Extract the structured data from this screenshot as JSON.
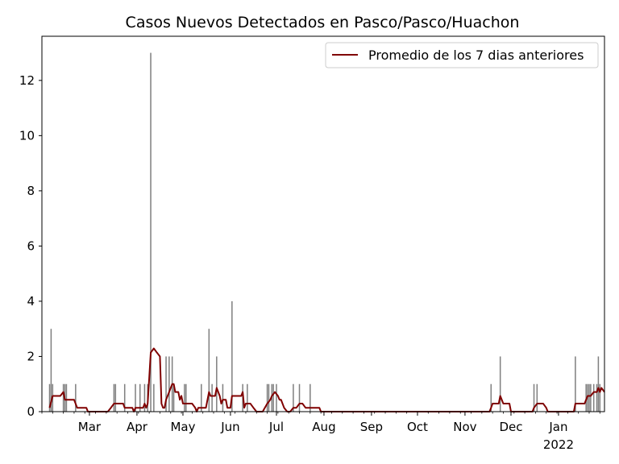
{
  "chart_data": {
    "type": "bar",
    "title": "Casos Nuevos Detectados en Pasco/Pasco/Huachon",
    "xlabel": "",
    "ylabel": "",
    "ylim": [
      0,
      13.6
    ],
    "xlim": [
      "2021-01-29",
      "2022-01-31"
    ],
    "y_ticks": [
      0,
      2,
      4,
      6,
      8,
      10,
      12
    ],
    "x_ticks": [
      {
        "date": "2021-03-01",
        "label": "Mar"
      },
      {
        "date": "2021-04-01",
        "label": "Apr"
      },
      {
        "date": "2021-05-01",
        "label": "May"
      },
      {
        "date": "2021-06-01",
        "label": "Jun"
      },
      {
        "date": "2021-07-01",
        "label": "Jul"
      },
      {
        "date": "2021-08-01",
        "label": "Aug"
      },
      {
        "date": "2021-09-01",
        "label": "Sep"
      },
      {
        "date": "2021-10-01",
        "label": "Oct"
      },
      {
        "date": "2021-11-01",
        "label": "Nov"
      },
      {
        "date": "2021-12-01",
        "label": "Dec"
      },
      {
        "date": "2022-01-01",
        "label": "Jan",
        "sublabel": "2022"
      }
    ],
    "legend": {
      "position": "top-right",
      "entries": [
        "Promedio de los 7 dias anteriores"
      ]
    },
    "grid": false,
    "series": [
      {
        "kind": "bar",
        "color": "#808080",
        "points": [
          {
            "x": "2021-02-03",
            "y": 1
          },
          {
            "x": "2021-02-04",
            "y": 3
          },
          {
            "x": "2021-02-05",
            "y": 1
          },
          {
            "x": "2021-02-12",
            "y": 1
          },
          {
            "x": "2021-02-13",
            "y": 1
          },
          {
            "x": "2021-02-14",
            "y": 1
          },
          {
            "x": "2021-02-20",
            "y": 1
          },
          {
            "x": "2021-03-17",
            "y": 1
          },
          {
            "x": "2021-03-18",
            "y": 1
          },
          {
            "x": "2021-03-24",
            "y": 1
          },
          {
            "x": "2021-03-31",
            "y": 1
          },
          {
            "x": "2021-04-03",
            "y": 1
          },
          {
            "x": "2021-04-06",
            "y": 1
          },
          {
            "x": "2021-04-08",
            "y": 1
          },
          {
            "x": "2021-04-10",
            "y": 13
          },
          {
            "x": "2021-04-12",
            "y": 1
          },
          {
            "x": "2021-04-20",
            "y": 2
          },
          {
            "x": "2021-04-22",
            "y": 2
          },
          {
            "x": "2021-04-24",
            "y": 2
          },
          {
            "x": "2021-04-25",
            "y": 1
          },
          {
            "x": "2021-05-02",
            "y": 1
          },
          {
            "x": "2021-05-03",
            "y": 1
          },
          {
            "x": "2021-05-13",
            "y": 1
          },
          {
            "x": "2021-05-18",
            "y": 3
          },
          {
            "x": "2021-05-20",
            "y": 1
          },
          {
            "x": "2021-05-23",
            "y": 2
          },
          {
            "x": "2021-05-27",
            "y": 1
          },
          {
            "x": "2021-06-02",
            "y": 4
          },
          {
            "x": "2021-06-09",
            "y": 1
          },
          {
            "x": "2021-06-12",
            "y": 1
          },
          {
            "x": "2021-06-25",
            "y": 1
          },
          {
            "x": "2021-06-26",
            "y": 1
          },
          {
            "x": "2021-06-28",
            "y": 1
          },
          {
            "x": "2021-06-29",
            "y": 1
          },
          {
            "x": "2021-07-01",
            "y": 1
          },
          {
            "x": "2021-07-12",
            "y": 1
          },
          {
            "x": "2021-07-16",
            "y": 1
          },
          {
            "x": "2021-07-23",
            "y": 1
          },
          {
            "x": "2021-11-18",
            "y": 1
          },
          {
            "x": "2021-11-24",
            "y": 2
          },
          {
            "x": "2021-12-16",
            "y": 1
          },
          {
            "x": "2021-12-18",
            "y": 1
          },
          {
            "x": "2022-01-12",
            "y": 2
          },
          {
            "x": "2022-01-19",
            "y": 1
          },
          {
            "x": "2022-01-20",
            "y": 1
          },
          {
            "x": "2022-01-21",
            "y": 1
          },
          {
            "x": "2022-01-22",
            "y": 1
          },
          {
            "x": "2022-01-24",
            "y": 1
          },
          {
            "x": "2022-01-26",
            "y": 1
          },
          {
            "x": "2022-01-27",
            "y": 2
          },
          {
            "x": "2022-01-28",
            "y": 1
          }
        ]
      },
      {
        "kind": "line",
        "name": "Promedio de los 7 dias anteriores",
        "color": "#800000",
        "points": [
          {
            "x": "2021-02-03",
            "y": 0.14
          },
          {
            "x": "2021-02-05",
            "y": 0.57
          },
          {
            "x": "2021-02-10",
            "y": 0.57
          },
          {
            "x": "2021-02-12",
            "y": 0.71
          },
          {
            "x": "2021-02-13",
            "y": 0.43
          },
          {
            "x": "2021-02-19",
            "y": 0.43
          },
          {
            "x": "2021-02-21",
            "y": 0.14
          },
          {
            "x": "2021-02-27",
            "y": 0.14
          },
          {
            "x": "2021-02-28",
            "y": 0
          },
          {
            "x": "2021-03-13",
            "y": 0
          },
          {
            "x": "2021-03-15",
            "y": 0.14
          },
          {
            "x": "2021-03-17",
            "y": 0.29
          },
          {
            "x": "2021-03-23",
            "y": 0.29
          },
          {
            "x": "2021-03-24",
            "y": 0.14
          },
          {
            "x": "2021-03-29",
            "y": 0.14
          },
          {
            "x": "2021-03-30",
            "y": 0
          },
          {
            "x": "2021-03-31",
            "y": 0.14
          },
          {
            "x": "2021-04-05",
            "y": 0.14
          },
          {
            "x": "2021-04-06",
            "y": 0.29
          },
          {
            "x": "2021-04-07",
            "y": 0.14
          },
          {
            "x": "2021-04-08",
            "y": 0.29
          },
          {
            "x": "2021-04-10",
            "y": 2.14
          },
          {
            "x": "2021-04-12",
            "y": 2.29
          },
          {
            "x": "2021-04-14",
            "y": 2.14
          },
          {
            "x": "2021-04-16",
            "y": 2.0
          },
          {
            "x": "2021-04-17",
            "y": 0.29
          },
          {
            "x": "2021-04-18",
            "y": 0.14
          },
          {
            "x": "2021-04-19",
            "y": 0.14
          },
          {
            "x": "2021-04-20",
            "y": 0.43
          },
          {
            "x": "2021-04-22",
            "y": 0.71
          },
          {
            "x": "2021-04-24",
            "y": 1.0
          },
          {
            "x": "2021-04-25",
            "y": 1.0
          },
          {
            "x": "2021-04-26",
            "y": 0.71
          },
          {
            "x": "2021-04-28",
            "y": 0.71
          },
          {
            "x": "2021-04-29",
            "y": 0.43
          },
          {
            "x": "2021-04-30",
            "y": 0.57
          },
          {
            "x": "2021-05-01",
            "y": 0.29
          },
          {
            "x": "2021-05-07",
            "y": 0.29
          },
          {
            "x": "2021-05-09",
            "y": 0.14
          },
          {
            "x": "2021-05-10",
            "y": 0
          },
          {
            "x": "2021-05-11",
            "y": 0.14
          },
          {
            "x": "2021-05-16",
            "y": 0.14
          },
          {
            "x": "2021-05-18",
            "y": 0.71
          },
          {
            "x": "2021-05-19",
            "y": 0.57
          },
          {
            "x": "2021-05-22",
            "y": 0.57
          },
          {
            "x": "2021-05-23",
            "y": 0.86
          },
          {
            "x": "2021-05-25",
            "y": 0.57
          },
          {
            "x": "2021-05-26",
            "y": 0.29
          },
          {
            "x": "2021-05-27",
            "y": 0.43
          },
          {
            "x": "2021-05-29",
            "y": 0.43
          },
          {
            "x": "2021-05-30",
            "y": 0.14
          },
          {
            "x": "2021-06-01",
            "y": 0.14
          },
          {
            "x": "2021-06-02",
            "y": 0.57
          },
          {
            "x": "2021-06-08",
            "y": 0.57
          },
          {
            "x": "2021-06-09",
            "y": 0.71
          },
          {
            "x": "2021-06-10",
            "y": 0.14
          },
          {
            "x": "2021-06-11",
            "y": 0.29
          },
          {
            "x": "2021-06-14",
            "y": 0.29
          },
          {
            "x": "2021-06-16",
            "y": 0.14
          },
          {
            "x": "2021-06-18",
            "y": 0
          },
          {
            "x": "2021-06-22",
            "y": 0
          },
          {
            "x": "2021-06-25",
            "y": 0.29
          },
          {
            "x": "2021-06-27",
            "y": 0.43
          },
          {
            "x": "2021-06-28",
            "y": 0.57
          },
          {
            "x": "2021-06-30",
            "y": 0.71
          },
          {
            "x": "2021-07-02",
            "y": 0.57
          },
          {
            "x": "2021-07-03",
            "y": 0.43
          },
          {
            "x": "2021-07-04",
            "y": 0.43
          },
          {
            "x": "2021-07-06",
            "y": 0.14
          },
          {
            "x": "2021-07-08",
            "y": 0
          },
          {
            "x": "2021-07-10",
            "y": 0
          },
          {
            "x": "2021-07-12",
            "y": 0.14
          },
          {
            "x": "2021-07-14",
            "y": 0.14
          },
          {
            "x": "2021-07-16",
            "y": 0.29
          },
          {
            "x": "2021-07-18",
            "y": 0.29
          },
          {
            "x": "2021-07-20",
            "y": 0.14
          },
          {
            "x": "2021-07-29",
            "y": 0.14
          },
          {
            "x": "2021-07-30",
            "y": 0
          },
          {
            "x": "2021-11-17",
            "y": 0
          },
          {
            "x": "2021-11-18",
            "y": 0.14
          },
          {
            "x": "2021-11-19",
            "y": 0.29
          },
          {
            "x": "2021-11-23",
            "y": 0.29
          },
          {
            "x": "2021-11-24",
            "y": 0.57
          },
          {
            "x": "2021-11-25",
            "y": 0.43
          },
          {
            "x": "2021-11-26",
            "y": 0.29
          },
          {
            "x": "2021-11-30",
            "y": 0.29
          },
          {
            "x": "2021-12-01",
            "y": 0
          },
          {
            "x": "2021-12-15",
            "y": 0
          },
          {
            "x": "2021-12-16",
            "y": 0.14
          },
          {
            "x": "2021-12-18",
            "y": 0.29
          },
          {
            "x": "2021-12-22",
            "y": 0.29
          },
          {
            "x": "2021-12-24",
            "y": 0.14
          },
          {
            "x": "2021-12-25",
            "y": 0
          },
          {
            "x": "2022-01-11",
            "y": 0
          },
          {
            "x": "2022-01-12",
            "y": 0.29
          },
          {
            "x": "2022-01-18",
            "y": 0.29
          },
          {
            "x": "2022-01-19",
            "y": 0.43
          },
          {
            "x": "2022-01-20",
            "y": 0.57
          },
          {
            "x": "2022-01-22",
            "y": 0.57
          },
          {
            "x": "2022-01-24",
            "y": 0.71
          },
          {
            "x": "2022-01-26",
            "y": 0.71
          },
          {
            "x": "2022-01-27",
            "y": 0.86
          },
          {
            "x": "2022-01-28",
            "y": 0.71
          },
          {
            "x": "2022-01-29",
            "y": 0.86
          },
          {
            "x": "2022-01-31",
            "y": 0.71
          }
        ]
      }
    ]
  }
}
